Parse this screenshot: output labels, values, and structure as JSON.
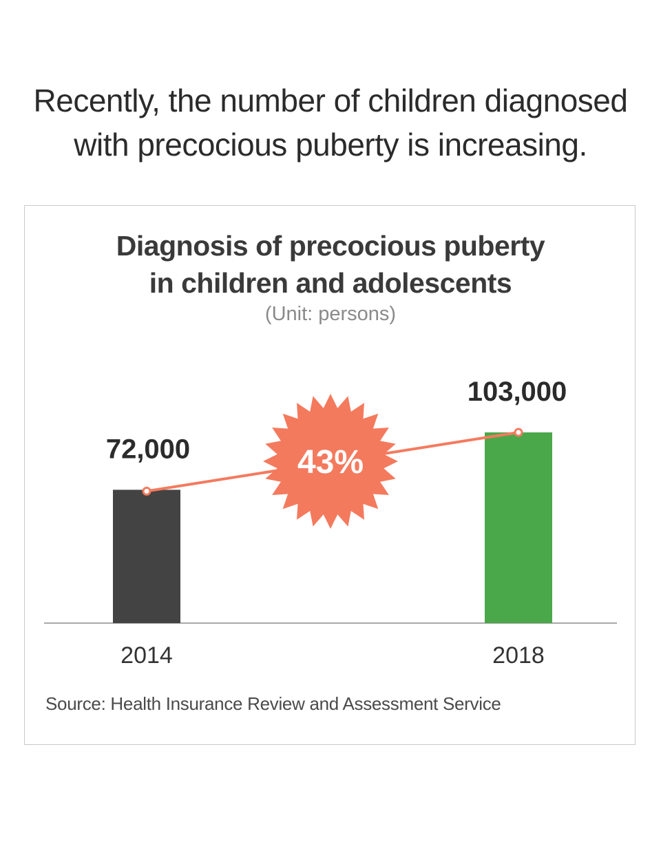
{
  "headline": {
    "line1": "Recently, the number of children diagnosed",
    "line2": "with precocious puberty is increasing."
  },
  "chart_data": {
    "type": "bar",
    "title_lines": [
      "Diagnosis of precocious puberty",
      "in children and adolescents"
    ],
    "unit": "(Unit: persons)",
    "categories": [
      "2014",
      "2018"
    ],
    "values": [
      72000,
      103000
    ],
    "value_labels": [
      "72,000",
      "103,000"
    ],
    "bar_colors": [
      "#434343",
      "#4aa84a"
    ],
    "trend_line_color": "#f47a5e",
    "ylim": [
      0,
      103000
    ],
    "growth_badge": {
      "label": "43%",
      "color": "#f47a5e"
    },
    "source": "Source: Health Insurance Review and Assessment Service"
  }
}
